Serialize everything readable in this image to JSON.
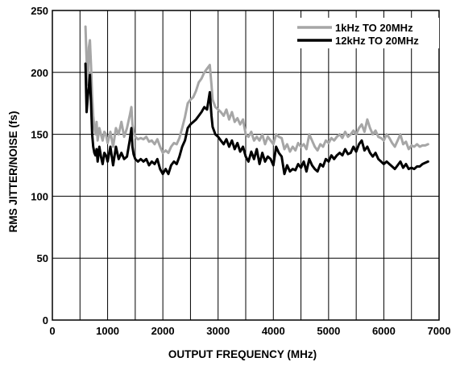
{
  "chart_data": {
    "type": "line",
    "title": "",
    "xlabel": "OUTPUT FREQUENCY (MHz)",
    "ylabel": "RMS JITTER/NOISE (fs)",
    "xlim": [
      0,
      7000
    ],
    "ylim": [
      0,
      250
    ],
    "xticks": [
      0,
      1000,
      2000,
      3000,
      4000,
      5000,
      6000,
      7000
    ],
    "yticks": [
      0,
      50,
      100,
      150,
      200,
      250
    ],
    "x_gridlines": [
      500,
      1000,
      1500,
      2000,
      2500,
      3000,
      3500,
      4000,
      4500,
      5000,
      5500,
      6000,
      6500
    ],
    "y_gridlines": [
      50,
      100,
      150,
      200
    ],
    "grid": true,
    "legend_position": "top-right",
    "series": [
      {
        "name": "1kHz TO 20MHz",
        "color": "#a6a6a6",
        "x": [
          600,
          620,
          640,
          660,
          680,
          700,
          720,
          740,
          760,
          780,
          800,
          820,
          850,
          880,
          910,
          940,
          970,
          1000,
          1050,
          1100,
          1150,
          1200,
          1250,
          1300,
          1350,
          1400,
          1430,
          1450,
          1470,
          1500,
          1550,
          1600,
          1650,
          1700,
          1750,
          1800,
          1850,
          1900,
          1950,
          2000,
          2050,
          2100,
          2150,
          2200,
          2250,
          2300,
          2350,
          2400,
          2450,
          2500,
          2550,
          2600,
          2650,
          2700,
          2750,
          2800,
          2850,
          2880,
          2900,
          2950,
          3000,
          3050,
          3100,
          3150,
          3200,
          3250,
          3300,
          3350,
          3400,
          3450,
          3500,
          3550,
          3600,
          3650,
          3700,
          3750,
          3800,
          3850,
          3900,
          3950,
          4000,
          4050,
          4100,
          4150,
          4200,
          4250,
          4300,
          4350,
          4400,
          4450,
          4500,
          4550,
          4600,
          4650,
          4700,
          4750,
          4800,
          4850,
          4900,
          4950,
          5000,
          5050,
          5100,
          5150,
          5200,
          5250,
          5300,
          5350,
          5400,
          5450,
          5500,
          5550,
          5600,
          5650,
          5700,
          5750,
          5800,
          5850,
          5900,
          5950,
          6000,
          6050,
          6100,
          6150,
          6200,
          6250,
          6300,
          6350,
          6400,
          6450,
          6500,
          6550,
          6600,
          6650,
          6700,
          6750,
          6800
        ],
        "values": [
          237,
          210,
          190,
          220,
          226,
          205,
          180,
          165,
          155,
          150,
          160,
          145,
          155,
          150,
          145,
          152,
          150,
          143,
          152,
          140,
          155,
          150,
          160,
          148,
          155,
          165,
          172,
          158,
          152,
          148,
          146,
          147,
          146,
          148,
          144,
          145,
          142,
          146,
          140,
          135,
          137,
          135,
          140,
          143,
          142,
          147,
          155,
          164,
          175,
          178,
          180,
          185,
          192,
          195,
          200,
          203,
          206,
          190,
          178,
          172,
          170,
          168,
          165,
          170,
          162,
          168,
          160,
          163,
          158,
          162,
          150,
          148,
          152,
          145,
          148,
          145,
          150,
          142,
          148,
          145,
          142,
          150,
          148,
          147,
          138,
          142,
          136,
          140,
          137,
          143,
          140,
          142,
          138,
          150,
          145,
          140,
          137,
          142,
          140,
          145,
          143,
          147,
          145,
          148,
          150,
          147,
          152,
          148,
          150,
          153,
          150,
          155,
          158,
          152,
          162,
          155,
          150,
          153,
          148,
          147,
          145,
          150,
          147,
          143,
          140,
          145,
          150,
          142,
          144,
          138,
          141,
          140,
          142,
          140,
          141,
          141,
          142
        ]
      },
      {
        "name": "12kHz TO 20MHz",
        "color": "#000000",
        "x": [
          600,
          620,
          640,
          660,
          680,
          700,
          720,
          740,
          760,
          780,
          800,
          820,
          850,
          880,
          910,
          940,
          970,
          1000,
          1050,
          1100,
          1150,
          1200,
          1250,
          1300,
          1350,
          1400,
          1430,
          1450,
          1470,
          1500,
          1550,
          1600,
          1650,
          1700,
          1750,
          1800,
          1850,
          1900,
          1950,
          2000,
          2050,
          2100,
          2150,
          2200,
          2250,
          2300,
          2350,
          2400,
          2450,
          2500,
          2550,
          2600,
          2650,
          2700,
          2750,
          2800,
          2850,
          2880,
          2900,
          2950,
          3000,
          3050,
          3100,
          3150,
          3200,
          3250,
          3300,
          3350,
          3400,
          3450,
          3500,
          3550,
          3600,
          3650,
          3700,
          3750,
          3800,
          3850,
          3900,
          3950,
          4000,
          4050,
          4100,
          4150,
          4200,
          4250,
          4300,
          4350,
          4400,
          4450,
          4500,
          4550,
          4600,
          4650,
          4700,
          4750,
          4800,
          4850,
          4900,
          4950,
          5000,
          5050,
          5100,
          5150,
          5200,
          5250,
          5300,
          5350,
          5400,
          5450,
          5500,
          5550,
          5600,
          5650,
          5700,
          5750,
          5800,
          5850,
          5900,
          5950,
          6000,
          6050,
          6100,
          6150,
          6200,
          6250,
          6300,
          6350,
          6400,
          6450,
          6500,
          6550,
          6600,
          6650,
          6700,
          6750,
          6800
        ],
        "values": [
          207,
          168,
          180,
          188,
          198,
          175,
          150,
          140,
          135,
          133,
          138,
          128,
          140,
          132,
          126,
          135,
          133,
          128,
          140,
          125,
          140,
          130,
          135,
          130,
          132,
          145,
          155,
          140,
          134,
          130,
          128,
          130,
          128,
          130,
          125,
          128,
          126,
          130,
          122,
          118,
          122,
          118,
          125,
          128,
          126,
          132,
          140,
          145,
          155,
          158,
          160,
          162,
          165,
          168,
          172,
          170,
          184,
          165,
          156,
          150,
          148,
          145,
          142,
          146,
          140,
          145,
          138,
          143,
          136,
          140,
          132,
          128,
          136,
          130,
          138,
          126,
          135,
          128,
          132,
          130,
          125,
          140,
          135,
          132,
          118,
          125,
          120,
          122,
          121,
          126,
          123,
          128,
          120,
          130,
          125,
          122,
          120,
          126,
          124,
          130,
          128,
          133,
          130,
          133,
          135,
          133,
          138,
          134,
          135,
          140,
          136,
          142,
          145,
          137,
          140,
          135,
          132,
          135,
          130,
          128,
          126,
          128,
          126,
          124,
          122,
          125,
          128,
          123,
          126,
          122,
          123,
          122,
          124,
          124,
          126,
          127,
          128
        ]
      }
    ]
  }
}
